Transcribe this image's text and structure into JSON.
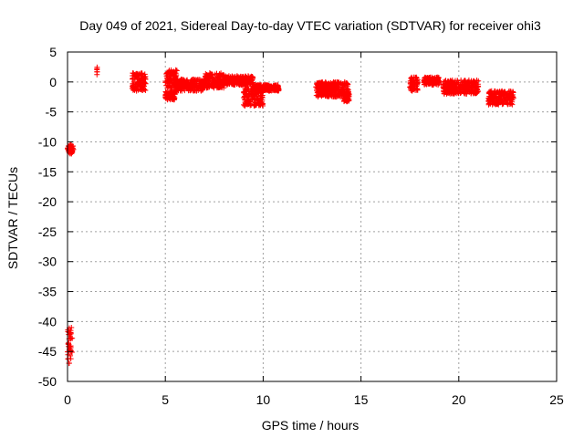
{
  "chart_data": {
    "type": "scatter",
    "title": "Day 049 of 2021, Sidereal Day-to-day VTEC variation (SDTVAR) for receiver ohi3",
    "xlabel": "GPS time / hours",
    "ylabel": "SDTVAR / TECUs",
    "xlim": [
      0,
      25
    ],
    "ylim": [
      -50,
      5
    ],
    "grid": true,
    "marker": "+",
    "color": "#ff0000",
    "x_ticks": [
      0,
      5,
      10,
      15,
      20,
      25
    ],
    "y_ticks": [
      5,
      0,
      -5,
      -10,
      -15,
      -20,
      -25,
      -30,
      -35,
      -40,
      -45,
      -50
    ],
    "segments": [
      {
        "x0": 0.0,
        "x1": 0.3,
        "y0": -12.0,
        "y1": -10.5
      },
      {
        "x0": 0.0,
        "x1": 0.25,
        "y0": -47.0,
        "y1": -41.0
      },
      {
        "x0": 1.5,
        "x1": 1.52,
        "y0": 0.8,
        "y1": 2.5
      },
      {
        "x0": 3.3,
        "x1": 4.0,
        "y0": -1.5,
        "y1": 1.5
      },
      {
        "x0": 5.0,
        "x1": 5.6,
        "y0": -1.0,
        "y1": 2.0
      },
      {
        "x0": 5.0,
        "x1": 5.5,
        "y0": -3.0,
        "y1": -1.5
      },
      {
        "x0": 5.5,
        "x1": 7.0,
        "y0": -1.5,
        "y1": 0.5
      },
      {
        "x0": 7.0,
        "x1": 8.0,
        "y0": -1.0,
        "y1": 1.5
      },
      {
        "x0": 8.0,
        "x1": 9.5,
        "y0": -0.5,
        "y1": 1.0
      },
      {
        "x0": 9.0,
        "x1": 10.0,
        "y0": -4.0,
        "y1": -1.0
      },
      {
        "x0": 9.5,
        "x1": 10.8,
        "y0": -1.5,
        "y1": -0.5
      },
      {
        "x0": 12.7,
        "x1": 14.4,
        "y0": -2.5,
        "y1": 0.0
      },
      {
        "x0": 14.1,
        "x1": 14.4,
        "y0": -3.3,
        "y1": -2.0
      },
      {
        "x0": 17.5,
        "x1": 17.9,
        "y0": -1.5,
        "y1": 0.8
      },
      {
        "x0": 18.2,
        "x1": 19.0,
        "y0": -0.5,
        "y1": 0.8
      },
      {
        "x0": 19.2,
        "x1": 21.0,
        "y0": -2.0,
        "y1": 0.3
      },
      {
        "x0": 21.5,
        "x1": 22.8,
        "y0": -3.8,
        "y1": -1.5
      }
    ]
  }
}
